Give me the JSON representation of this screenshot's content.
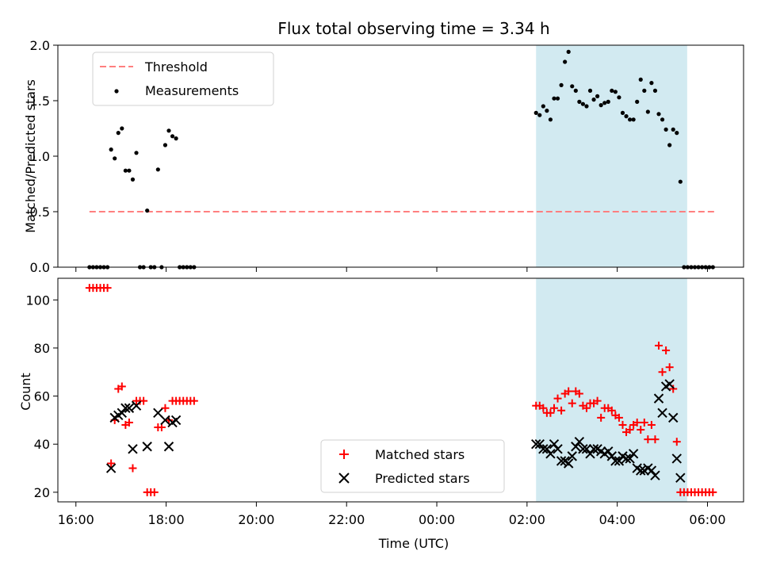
{
  "chart_data": [
    {
      "type": "scatter",
      "title": "Flux total observing time = 3.34 h",
      "xlabel": "",
      "ylabel": "Matched/Predicted stars",
      "ylim": [
        0,
        2.0
      ],
      "yticks": [
        "0.0",
        "0.5",
        "1.0",
        "1.5",
        "2.0"
      ],
      "yticks_values": [
        0,
        0.5,
        1.0,
        1.5,
        2.0
      ],
      "legend_position": "top-left",
      "highlight_span": {
        "start_hours_after_16": 10.2,
        "end_hours_after_16": 13.55,
        "color": "#add8e6"
      },
      "threshold": {
        "name": "Threshold",
        "value": 0.5,
        "from_hours_after_16": 0.3,
        "to_hours_after_16": 14.15,
        "color": "#ff7f7f"
      },
      "series": [
        {
          "name": "Measurements",
          "color": "#000000",
          "points": [
            [
              0.3,
              0
            ],
            [
              0.38,
              0
            ],
            [
              0.46,
              0
            ],
            [
              0.54,
              0
            ],
            [
              0.62,
              0
            ],
            [
              0.7,
              0
            ],
            [
              0.78,
              1.06
            ],
            [
              0.86,
              0.98
            ],
            [
              0.94,
              1.21
            ],
            [
              1.02,
              1.25
            ],
            [
              1.1,
              0.87
            ],
            [
              1.18,
              0.87
            ],
            [
              1.26,
              0.79
            ],
            [
              1.34,
              1.03
            ],
            [
              1.42,
              0
            ],
            [
              1.5,
              0
            ],
            [
              1.58,
              0.51
            ],
            [
              1.66,
              0
            ],
            [
              1.74,
              0
            ],
            [
              1.82,
              0.88
            ],
            [
              1.9,
              0
            ],
            [
              1.98,
              1.1
            ],
            [
              2.06,
              1.23
            ],
            [
              2.14,
              1.18
            ],
            [
              2.22,
              1.16
            ],
            [
              2.3,
              0
            ],
            [
              2.38,
              0
            ],
            [
              2.46,
              0
            ],
            [
              2.54,
              0
            ],
            [
              2.62,
              0
            ],
            [
              10.2,
              1.39
            ],
            [
              10.28,
              1.37
            ],
            [
              10.36,
              1.45
            ],
            [
              10.44,
              1.41
            ],
            [
              10.52,
              1.33
            ],
            [
              10.6,
              1.52
            ],
            [
              10.68,
              1.52
            ],
            [
              10.76,
              1.64
            ],
            [
              10.84,
              1.85
            ],
            [
              10.92,
              1.94
            ],
            [
              11.0,
              1.63
            ],
            [
              11.08,
              1.59
            ],
            [
              11.16,
              1.49
            ],
            [
              11.24,
              1.47
            ],
            [
              11.32,
              1.45
            ],
            [
              11.4,
              1.59
            ],
            [
              11.48,
              1.51
            ],
            [
              11.56,
              1.54
            ],
            [
              11.64,
              1.46
            ],
            [
              11.72,
              1.48
            ],
            [
              11.8,
              1.49
            ],
            [
              11.88,
              1.59
            ],
            [
              11.96,
              1.58
            ],
            [
              12.04,
              1.53
            ],
            [
              12.12,
              1.39
            ],
            [
              12.2,
              1.36
            ],
            [
              12.28,
              1.33
            ],
            [
              12.36,
              1.33
            ],
            [
              12.44,
              1.49
            ],
            [
              12.52,
              1.69
            ],
            [
              12.6,
              1.59
            ],
            [
              12.68,
              1.4
            ],
            [
              12.76,
              1.66
            ],
            [
              12.84,
              1.59
            ],
            [
              12.92,
              1.38
            ],
            [
              13.0,
              1.33
            ],
            [
              13.08,
              1.24
            ],
            [
              13.16,
              1.1
            ],
            [
              13.24,
              1.24
            ],
            [
              13.32,
              1.21
            ],
            [
              13.4,
              0.77
            ],
            [
              13.48,
              0
            ],
            [
              13.56,
              0
            ],
            [
              13.64,
              0
            ],
            [
              13.72,
              0
            ],
            [
              13.8,
              0
            ],
            [
              13.88,
              0
            ],
            [
              13.96,
              0
            ],
            [
              14.04,
              0
            ],
            [
              14.12,
              0
            ]
          ]
        }
      ]
    },
    {
      "type": "scatter",
      "title": "",
      "xlabel": "Time (UTC)",
      "ylabel": "Count",
      "ylim": [
        16,
        109
      ],
      "yticks": [
        "20",
        "40",
        "60",
        "80",
        "100"
      ],
      "yticks_values": [
        20,
        40,
        60,
        80,
        100
      ],
      "xticks": [
        "16:00",
        "18:00",
        "20:00",
        "22:00",
        "00:00",
        "02:00",
        "04:00",
        "06:00"
      ],
      "xticks_hours_after_16": [
        0,
        2,
        4,
        6,
        8,
        10,
        12,
        14
      ],
      "xlim_hours_after_16": [
        -0.4,
        14.8
      ],
      "legend_position": "bottom-center",
      "highlight_span": {
        "start_hours_after_16": 10.2,
        "end_hours_after_16": 13.55,
        "color": "#add8e6"
      },
      "series": [
        {
          "name": "Matched stars",
          "marker": "plus",
          "color": "#ff0000",
          "points": [
            [
              0.3,
              105
            ],
            [
              0.38,
              105
            ],
            [
              0.46,
              105
            ],
            [
              0.54,
              105
            ],
            [
              0.62,
              105
            ],
            [
              0.7,
              105
            ],
            [
              0.78,
              32
            ],
            [
              0.86,
              50
            ],
            [
              0.94,
              63
            ],
            [
              1.02,
              64
            ],
            [
              1.1,
              48
            ],
            [
              1.18,
              49
            ],
            [
              1.26,
              30
            ],
            [
              1.34,
              58
            ],
            [
              1.42,
              58
            ],
            [
              1.5,
              58
            ],
            [
              1.58,
              20
            ],
            [
              1.66,
              20
            ],
            [
              1.74,
              20
            ],
            [
              1.82,
              47
            ],
            [
              1.9,
              47
            ],
            [
              1.98,
              55
            ],
            [
              2.06,
              50
            ],
            [
              2.14,
              58
            ],
            [
              2.22,
              58
            ],
            [
              2.3,
              58
            ],
            [
              2.38,
              58
            ],
            [
              2.46,
              58
            ],
            [
              2.54,
              58
            ],
            [
              2.62,
              58
            ],
            [
              10.2,
              56
            ],
            [
              10.28,
              56
            ],
            [
              10.36,
              55
            ],
            [
              10.44,
              53
            ],
            [
              10.52,
              53
            ],
            [
              10.6,
              55
            ],
            [
              10.68,
              59
            ],
            [
              10.76,
              54
            ],
            [
              10.84,
              61
            ],
            [
              10.92,
              62
            ],
            [
              11.0,
              57
            ],
            [
              11.08,
              62
            ],
            [
              11.16,
              61
            ],
            [
              11.24,
              56
            ],
            [
              11.32,
              55
            ],
            [
              11.4,
              57
            ],
            [
              11.48,
              57
            ],
            [
              11.56,
              58
            ],
            [
              11.64,
              51
            ],
            [
              11.72,
              55
            ],
            [
              11.8,
              55
            ],
            [
              11.88,
              54
            ],
            [
              11.96,
              52
            ],
            [
              12.04,
              51
            ],
            [
              12.12,
              48
            ],
            [
              12.2,
              45
            ],
            [
              12.28,
              46
            ],
            [
              12.36,
              48
            ],
            [
              12.44,
              49
            ],
            [
              12.52,
              46
            ],
            [
              12.6,
              49
            ],
            [
              12.68,
              42
            ],
            [
              12.76,
              48
            ],
            [
              12.84,
              42
            ],
            [
              12.92,
              81
            ],
            [
              13.0,
              70
            ],
            [
              13.08,
              79
            ],
            [
              13.16,
              72
            ],
            [
              13.24,
              63
            ],
            [
              13.32,
              41
            ],
            [
              13.4,
              20
            ],
            [
              13.48,
              20
            ],
            [
              13.56,
              20
            ],
            [
              13.64,
              20
            ],
            [
              13.72,
              20
            ],
            [
              13.8,
              20
            ],
            [
              13.88,
              20
            ],
            [
              13.96,
              20
            ],
            [
              14.04,
              20
            ],
            [
              14.12,
              20
            ]
          ]
        },
        {
          "name": "Predicted stars",
          "marker": "x",
          "color": "#000000",
          "points": [
            [
              0.78,
              30
            ],
            [
              0.86,
              51
            ],
            [
              0.94,
              52
            ],
            [
              1.02,
              53
            ],
            [
              1.1,
              55
            ],
            [
              1.18,
              55
            ],
            [
              1.26,
              38
            ],
            [
              1.34,
              56
            ],
            [
              1.58,
              39
            ],
            [
              1.82,
              53
            ],
            [
              1.98,
              50
            ],
            [
              2.06,
              39
            ],
            [
              2.14,
              49
            ],
            [
              2.22,
              50
            ],
            [
              10.2,
              40
            ],
            [
              10.28,
              40
            ],
            [
              10.36,
              38
            ],
            [
              10.44,
              38
            ],
            [
              10.52,
              36
            ],
            [
              10.6,
              40
            ],
            [
              10.68,
              38
            ],
            [
              10.76,
              33
            ],
            [
              10.84,
              33
            ],
            [
              10.92,
              32
            ],
            [
              11.0,
              35
            ],
            [
              11.08,
              39
            ],
            [
              11.16,
              41
            ],
            [
              11.24,
              38
            ],
            [
              11.32,
              38
            ],
            [
              11.4,
              36
            ],
            [
              11.48,
              38
            ],
            [
              11.56,
              38
            ],
            [
              11.64,
              37
            ],
            [
              11.72,
              36
            ],
            [
              11.8,
              37
            ],
            [
              11.88,
              35
            ],
            [
              11.96,
              33
            ],
            [
              12.04,
              33
            ],
            [
              12.12,
              35
            ],
            [
              12.2,
              34
            ],
            [
              12.28,
              34
            ],
            [
              12.36,
              36
            ],
            [
              12.44,
              30
            ],
            [
              12.52,
              29
            ],
            [
              12.6,
              29
            ],
            [
              12.68,
              30
            ],
            [
              12.76,
              29
            ],
            [
              12.84,
              27
            ],
            [
              12.92,
              59
            ],
            [
              13.0,
              53
            ],
            [
              13.08,
              64
            ],
            [
              13.16,
              65
            ],
            [
              13.24,
              51
            ],
            [
              13.32,
              34
            ],
            [
              13.4,
              26
            ]
          ]
        }
      ]
    }
  ]
}
